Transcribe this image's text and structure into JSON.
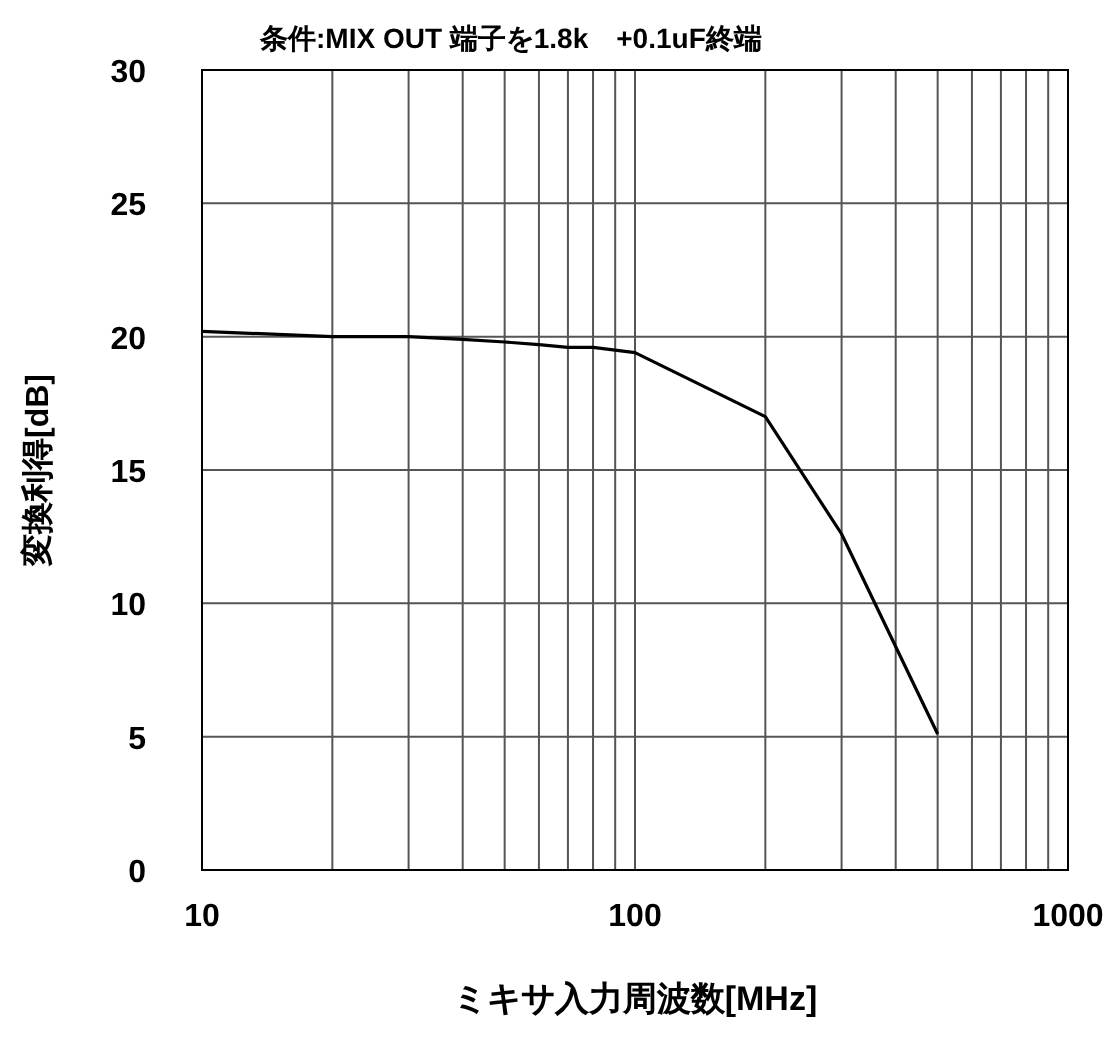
{
  "chart_data": {
    "type": "line",
    "title": "条件:MIX OUT 端子を1.8k　+0.1uF終端",
    "xlabel": "ミキサ入力周波数[MHz]",
    "ylabel": "変換利得[dB]",
    "x": [
      10,
      20,
      30,
      40,
      50,
      60,
      70,
      80,
      100,
      200,
      300,
      500
    ],
    "series": [
      {
        "color": "#000000",
        "values": [
          20.2,
          20.0,
          20.0,
          19.9,
          19.8,
          19.7,
          19.6,
          19.6,
          19.4,
          17.0,
          12.6,
          5.1
        ]
      }
    ],
    "log": "x",
    "xlim": [
      10,
      1000
    ],
    "ylim": [
      0,
      30
    ],
    "xticks": [
      10,
      {
        "value": 20,
        "label": null
      },
      {
        "value": 30,
        "label": null
      },
      {
        "value": 40,
        "label": null
      },
      {
        "value": 50,
        "label": null
      },
      {
        "value": 60,
        "label": null
      },
      {
        "value": 70,
        "label": null
      },
      {
        "value": 80,
        "label": null
      },
      {
        "value": 90,
        "label": null
      },
      100,
      {
        "value": 200,
        "label": null
      },
      {
        "value": 300,
        "label": null
      },
      {
        "value": 400,
        "label": null
      },
      {
        "value": 500,
        "label": null
      },
      {
        "value": 600,
        "label": null
      },
      {
        "value": 700,
        "label": null
      },
      {
        "value": 800,
        "label": null
      },
      {
        "value": 900,
        "label": null
      },
      1000
    ],
    "yticks": [
      0,
      5,
      10,
      15,
      20,
      25,
      30
    ],
    "grid": true,
    "marker": "none",
    "line_style": "solid"
  }
}
